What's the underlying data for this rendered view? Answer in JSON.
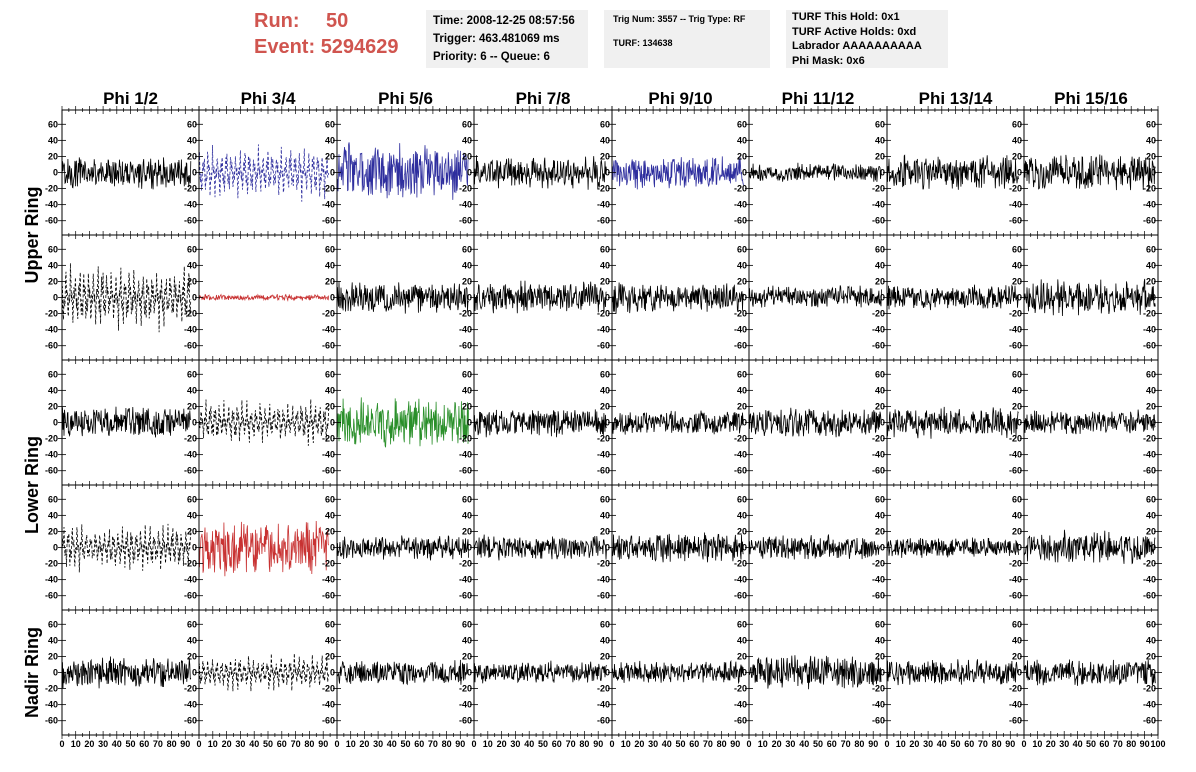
{
  "header": {
    "run_label": "Run:",
    "run_value": "50",
    "event_label": "Event:",
    "event_value": "5294629",
    "colors": {
      "run_text": "#d0554f",
      "box_bg": "#f0f0f0"
    }
  },
  "info_time": {
    "time": "Time: 2008-12-25 08:57:56",
    "trigger": "Trigger: 463.481069 ms",
    "priority": "Priority: 6 -- Queue: 6"
  },
  "info_trig": {
    "trig": "Trig Num: 3557 -- Trig Type: RF",
    "turf": "TURF: 134638"
  },
  "info_turf": {
    "this_hold": "TURF This Hold: 0x1",
    "active_holds": "TURF Active Holds: 0xd",
    "labrador": "Labrador AAAAAAAAAA",
    "phi_mask": "Phi Mask: 0x6"
  },
  "chart_data": {
    "type": "line",
    "columns": [
      "Phi 1/2",
      "Phi 3/4",
      "Phi 5/6",
      "Phi 7/8",
      "Phi 9/10",
      "Phi 11/12",
      "Phi 13/14",
      "Phi 15/16"
    ],
    "ring_labels": [
      "Upper Ring",
      "Lower Ring",
      "Nadir Ring"
    ],
    "rows_per_ring": [
      2,
      2,
      1
    ],
    "xlim": [
      0,
      100
    ],
    "ylim": [
      -70,
      70
    ],
    "x_ticks": [
      0,
      10,
      20,
      30,
      40,
      50,
      60,
      70,
      80,
      90,
      100
    ],
    "y_ticks": [
      -60,
      -40,
      -20,
      0,
      20,
      40,
      60
    ],
    "colors": {
      "black": "#000000",
      "blue": "#2e2e9e",
      "red": "#c83232",
      "green": "#2a8f2a"
    },
    "panels": [
      {
        "row": 0,
        "col": 0,
        "color": "black",
        "style": "solid",
        "amplitude": 16,
        "seed": 101,
        "t_end": 94
      },
      {
        "row": 0,
        "col": 1,
        "color": "blue",
        "style": "dashed",
        "amplitude": 28,
        "seed": 102,
        "t_end": 94
      },
      {
        "row": 0,
        "col": 2,
        "color": "blue",
        "style": "solid",
        "amplitude": 28,
        "seed": 103,
        "t_end": 96
      },
      {
        "row": 0,
        "col": 3,
        "color": "black",
        "style": "solid",
        "amplitude": 16,
        "seed": 104,
        "t_end": 96
      },
      {
        "row": 0,
        "col": 4,
        "color": "blue",
        "style": "solid",
        "amplitude": 16,
        "seed": 105,
        "t_end": 96
      },
      {
        "row": 0,
        "col": 5,
        "color": "black",
        "style": "solid",
        "amplitude": 9,
        "seed": 106,
        "t_end": 96
      },
      {
        "row": 0,
        "col": 6,
        "color": "black",
        "style": "solid",
        "amplitude": 16,
        "seed": 107,
        "t_end": 96
      },
      {
        "row": 0,
        "col": 7,
        "color": "black",
        "style": "solid",
        "amplitude": 17,
        "seed": 108,
        "t_end": 98
      },
      {
        "row": 1,
        "col": 0,
        "color": "black",
        "style": "dashed",
        "amplitude": 33,
        "seed": 109,
        "t_end": 94
      },
      {
        "row": 1,
        "col": 1,
        "color": "red",
        "style": "solid",
        "amplitude": 3,
        "seed": 110,
        "t_end": 94
      },
      {
        "row": 1,
        "col": 2,
        "color": "black",
        "style": "solid",
        "amplitude": 15,
        "seed": 111,
        "t_end": 96
      },
      {
        "row": 1,
        "col": 3,
        "color": "black",
        "style": "solid",
        "amplitude": 16,
        "seed": 112,
        "t_end": 96
      },
      {
        "row": 1,
        "col": 4,
        "color": "black",
        "style": "solid",
        "amplitude": 15,
        "seed": 113,
        "t_end": 96
      },
      {
        "row": 1,
        "col": 5,
        "color": "black",
        "style": "solid",
        "amplitude": 11,
        "seed": 114,
        "t_end": 96
      },
      {
        "row": 1,
        "col": 6,
        "color": "black",
        "style": "solid",
        "amplitude": 12,
        "seed": 115,
        "t_end": 96
      },
      {
        "row": 1,
        "col": 7,
        "color": "black",
        "style": "solid",
        "amplitude": 18,
        "seed": 116,
        "t_end": 98
      },
      {
        "row": 2,
        "col": 0,
        "color": "black",
        "style": "solid",
        "amplitude": 15,
        "seed": 117,
        "t_end": 94
      },
      {
        "row": 2,
        "col": 1,
        "color": "black",
        "style": "dashed",
        "amplitude": 22,
        "seed": 118,
        "t_end": 94
      },
      {
        "row": 2,
        "col": 2,
        "color": "green",
        "style": "solid",
        "amplitude": 24,
        "seed": 119,
        "t_end": 96
      },
      {
        "row": 2,
        "col": 3,
        "color": "black",
        "style": "solid",
        "amplitude": 14,
        "seed": 120,
        "t_end": 96
      },
      {
        "row": 2,
        "col": 4,
        "color": "black",
        "style": "solid",
        "amplitude": 11,
        "seed": 121,
        "t_end": 96
      },
      {
        "row": 2,
        "col": 5,
        "color": "black",
        "style": "solid",
        "amplitude": 14,
        "seed": 122,
        "t_end": 96
      },
      {
        "row": 2,
        "col": 6,
        "color": "black",
        "style": "solid",
        "amplitude": 15,
        "seed": 123,
        "t_end": 96
      },
      {
        "row": 2,
        "col": 7,
        "color": "black",
        "style": "solid",
        "amplitude": 12,
        "seed": 124,
        "t_end": 98
      },
      {
        "row": 3,
        "col": 0,
        "color": "black",
        "style": "dashed",
        "amplitude": 24,
        "seed": 125,
        "t_end": 94
      },
      {
        "row": 3,
        "col": 1,
        "color": "red",
        "style": "solid",
        "amplitude": 26,
        "seed": 126,
        "t_end": 94
      },
      {
        "row": 3,
        "col": 2,
        "color": "black",
        "style": "solid",
        "amplitude": 12,
        "seed": 127,
        "t_end": 96
      },
      {
        "row": 3,
        "col": 3,
        "color": "black",
        "style": "solid",
        "amplitude": 12,
        "seed": 128,
        "t_end": 96
      },
      {
        "row": 3,
        "col": 4,
        "color": "black",
        "style": "solid",
        "amplitude": 14,
        "seed": 129,
        "t_end": 96
      },
      {
        "row": 3,
        "col": 5,
        "color": "black",
        "style": "solid",
        "amplitude": 12,
        "seed": 130,
        "t_end": 96
      },
      {
        "row": 3,
        "col": 6,
        "color": "black",
        "style": "solid",
        "amplitude": 10,
        "seed": 131,
        "t_end": 96
      },
      {
        "row": 3,
        "col": 7,
        "color": "black",
        "style": "solid",
        "amplitude": 16,
        "seed": 132,
        "t_end": 98
      },
      {
        "row": 4,
        "col": 0,
        "color": "black",
        "style": "solid",
        "amplitude": 15,
        "seed": 133,
        "t_end": 94
      },
      {
        "row": 4,
        "col": 1,
        "color": "black",
        "style": "dashed",
        "amplitude": 18,
        "seed": 134,
        "t_end": 94
      },
      {
        "row": 4,
        "col": 2,
        "color": "black",
        "style": "solid",
        "amplitude": 12,
        "seed": 135,
        "t_end": 96
      },
      {
        "row": 4,
        "col": 3,
        "color": "black",
        "style": "solid",
        "amplitude": 11,
        "seed": 136,
        "t_end": 96
      },
      {
        "row": 4,
        "col": 4,
        "color": "black",
        "style": "solid",
        "amplitude": 11,
        "seed": 137,
        "t_end": 96
      },
      {
        "row": 4,
        "col": 5,
        "color": "black",
        "style": "solid",
        "amplitude": 16,
        "seed": 138,
        "t_end": 96
      },
      {
        "row": 4,
        "col": 6,
        "color": "black",
        "style": "solid",
        "amplitude": 12,
        "seed": 139,
        "t_end": 96
      },
      {
        "row": 4,
        "col": 7,
        "color": "black",
        "style": "solid",
        "amplitude": 13,
        "seed": 140,
        "t_end": 98
      }
    ]
  }
}
